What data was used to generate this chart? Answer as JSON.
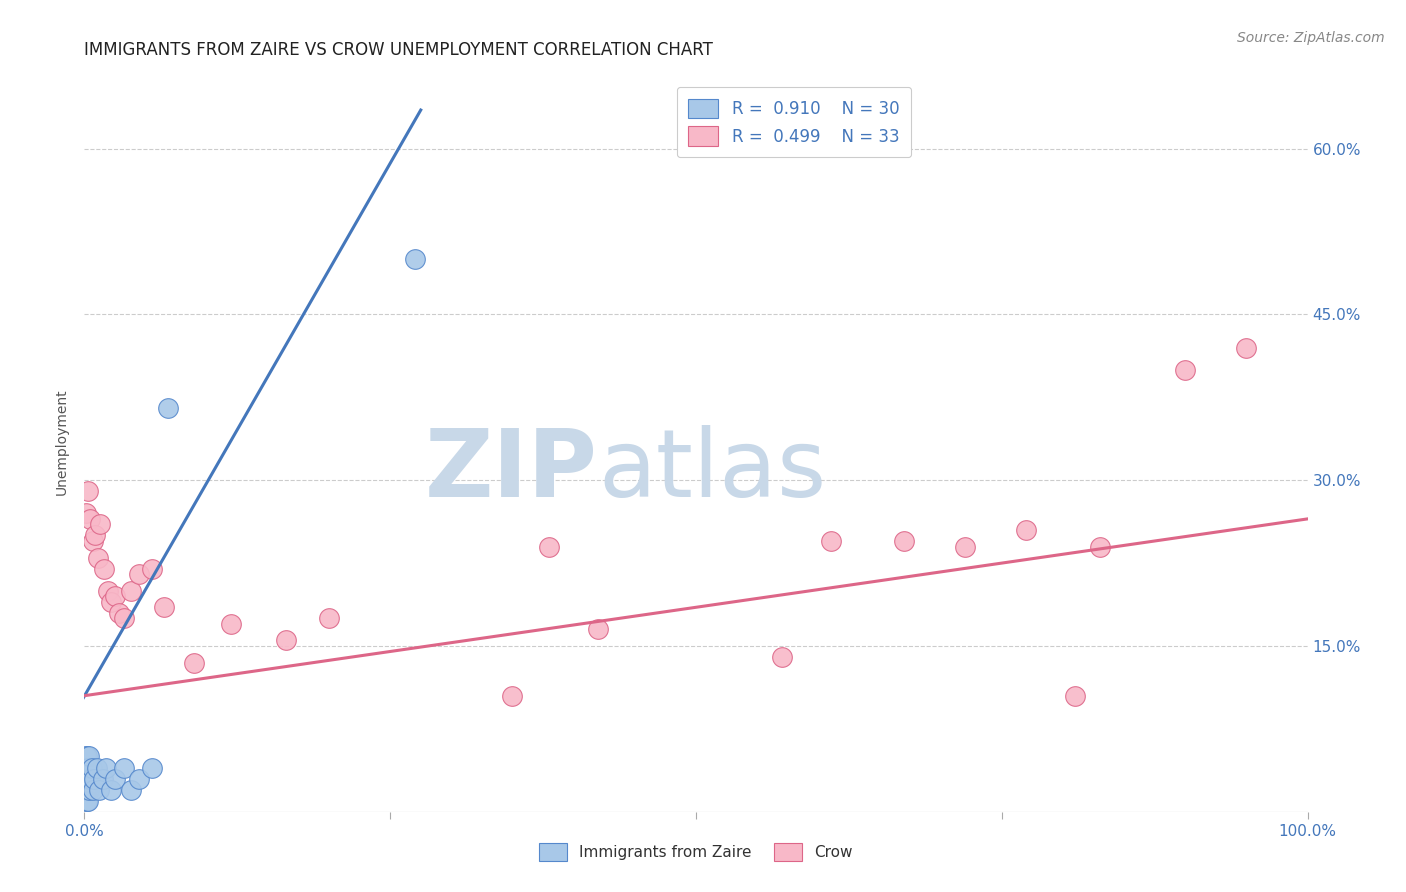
{
  "title": "IMMIGRANTS FROM ZAIRE VS CROW UNEMPLOYMENT CORRELATION CHART",
  "source": "Source: ZipAtlas.com",
  "ylabel": "Unemployment",
  "y_tick_labels": [
    "15.0%",
    "30.0%",
    "45.0%",
    "60.0%"
  ],
  "y_tick_values": [
    0.15,
    0.3,
    0.45,
    0.6
  ],
  "xlim": [
    0.0,
    1.0
  ],
  "ylim": [
    0.0,
    0.67
  ],
  "blue_scatter_x": [
    0.001,
    0.001,
    0.001,
    0.001,
    0.001,
    0.002,
    0.002,
    0.002,
    0.002,
    0.003,
    0.003,
    0.003,
    0.004,
    0.004,
    0.005,
    0.006,
    0.007,
    0.008,
    0.01,
    0.012,
    0.015,
    0.018,
    0.022,
    0.025,
    0.032,
    0.038,
    0.045,
    0.055,
    0.068,
    0.27
  ],
  "blue_scatter_y": [
    0.01,
    0.02,
    0.03,
    0.04,
    0.05,
    0.01,
    0.02,
    0.03,
    0.05,
    0.01,
    0.03,
    0.04,
    0.02,
    0.05,
    0.03,
    0.04,
    0.02,
    0.03,
    0.04,
    0.02,
    0.03,
    0.04,
    0.02,
    0.03,
    0.04,
    0.02,
    0.03,
    0.04,
    0.365,
    0.5
  ],
  "blue_line_x": [
    -0.005,
    0.275
  ],
  "blue_line_y": [
    0.095,
    0.635
  ],
  "pink_scatter_x": [
    0.001,
    0.003,
    0.005,
    0.007,
    0.009,
    0.011,
    0.013,
    0.016,
    0.019,
    0.022,
    0.025,
    0.028,
    0.032,
    0.038,
    0.045,
    0.055,
    0.065,
    0.09,
    0.12,
    0.165,
    0.2,
    0.35,
    0.38,
    0.42,
    0.57,
    0.61,
    0.67,
    0.72,
    0.77,
    0.81,
    0.83,
    0.9,
    0.95
  ],
  "pink_scatter_y": [
    0.27,
    0.29,
    0.265,
    0.245,
    0.25,
    0.23,
    0.26,
    0.22,
    0.2,
    0.19,
    0.195,
    0.18,
    0.175,
    0.2,
    0.215,
    0.22,
    0.185,
    0.135,
    0.17,
    0.155,
    0.175,
    0.105,
    0.24,
    0.165,
    0.14,
    0.245,
    0.245,
    0.24,
    0.255,
    0.105,
    0.24,
    0.4,
    0.42
  ],
  "pink_line_x": [
    0.0,
    1.0
  ],
  "pink_line_y": [
    0.105,
    0.265
  ],
  "background_color": "#ffffff",
  "plot_bg_color": "#ffffff",
  "grid_color": "#cccccc",
  "blue_color": "#a8c8e8",
  "blue_edge_color": "#5588cc",
  "blue_line_color": "#4477bb",
  "pink_color": "#f8b8c8",
  "pink_edge_color": "#dd6688",
  "pink_line_color": "#dd6688",
  "watermark_zip_color": "#c8d8e8",
  "watermark_atlas_color": "#c8d8e8",
  "title_fontsize": 12,
  "axis_label_fontsize": 10,
  "tick_fontsize": 11,
  "legend_fontsize": 12,
  "source_fontsize": 10
}
